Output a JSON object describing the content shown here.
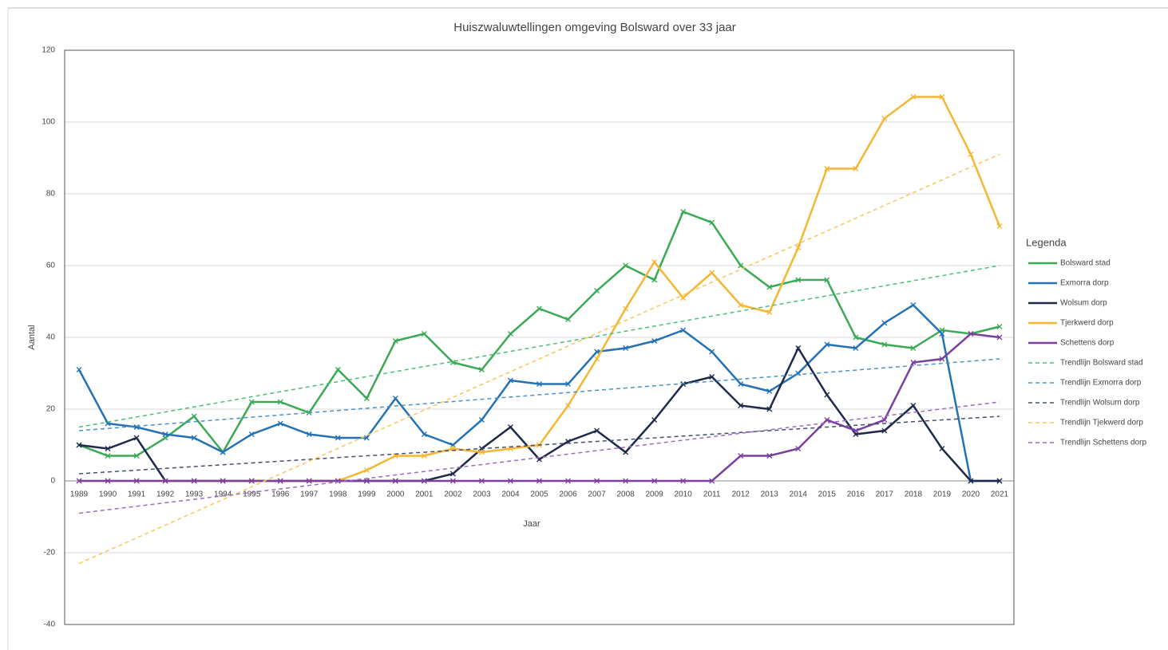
{
  "chart_data": {
    "type": "line",
    "title": "Huiszwaluwtellingen omgeving Bolsward over 33 jaar",
    "xlabel": "Jaar",
    "ylabel": "Aantal",
    "legend_title": "Legenda",
    "x": [
      1989,
      1990,
      1991,
      1992,
      1993,
      1994,
      1995,
      1996,
      1997,
      1998,
      1999,
      2000,
      2001,
      2002,
      2003,
      2004,
      2005,
      2006,
      2007,
      2008,
      2009,
      2010,
      2011,
      2012,
      2013,
      2014,
      2015,
      2016,
      2017,
      2018,
      2019,
      2020,
      2021
    ],
    "xlim": [
      1988.5,
      2021.5
    ],
    "ylim": [
      -40,
      120
    ],
    "yticks": [
      -40,
      -20,
      0,
      20,
      40,
      60,
      80,
      100,
      120
    ],
    "grid": true,
    "legend": "right",
    "series": [
      {
        "name": "Bolsward stad",
        "color": "#3aaa55",
        "values": [
          10,
          7,
          7,
          12,
          18,
          8,
          22,
          22,
          19,
          31,
          23,
          39,
          41,
          33,
          31,
          41,
          48,
          45,
          53,
          60,
          56,
          75,
          72,
          60,
          54,
          56,
          56,
          40,
          38,
          37,
          42,
          41,
          43
        ]
      },
      {
        "name": "Exmorra dorp",
        "color": "#2272b5",
        "values": [
          31,
          16,
          15,
          13,
          12,
          8,
          13,
          16,
          13,
          12,
          12,
          23,
          13,
          10,
          17,
          28,
          27,
          27,
          36,
          37,
          39,
          42,
          36,
          27,
          25,
          30,
          38,
          37,
          44,
          49,
          41,
          0,
          0
        ]
      },
      {
        "name": "Wolsum dorp",
        "color": "#1f2a4a",
        "values": [
          10,
          9,
          12,
          0,
          0,
          0,
          0,
          0,
          0,
          0,
          0,
          0,
          0,
          2,
          9,
          15,
          6,
          11,
          14,
          8,
          17,
          27,
          29,
          21,
          20,
          37,
          24,
          13,
          14,
          21,
          9,
          0,
          0
        ]
      },
      {
        "name": "Tjerkwerd dorp",
        "color": "#f5b731",
        "values": [
          0,
          0,
          0,
          0,
          0,
          0,
          0,
          0,
          0,
          0,
          3,
          7,
          7,
          9,
          8,
          9,
          10,
          21,
          34,
          48,
          61,
          51,
          58,
          49,
          47,
          65,
          87,
          87,
          101,
          107,
          107,
          91,
          71
        ]
      },
      {
        "name": "Schettens dorp",
        "color": "#7a3fa0",
        "values": [
          0,
          0,
          0,
          0,
          0,
          0,
          0,
          0,
          0,
          0,
          0,
          0,
          0,
          0,
          0,
          0,
          0,
          0,
          0,
          0,
          0,
          0,
          0,
          7,
          7,
          9,
          17,
          14,
          17,
          33,
          34,
          41,
          40
        ]
      },
      {
        "name": "Trendlijn Bolsward stad",
        "color": "#4cbf77",
        "dashed": true,
        "x": [
          1989,
          2021
        ],
        "values": [
          15,
          60
        ]
      },
      {
        "name": "Trendlijn Exmorra dorp",
        "color": "#4a93c8",
        "dashed": true,
        "x": [
          1989,
          2021
        ],
        "values": [
          14,
          34
        ]
      },
      {
        "name": "Trendlijn Wolsum dorp",
        "color": "#44506e",
        "dashed": true,
        "x": [
          1989,
          2021
        ],
        "values": [
          2,
          18
        ]
      },
      {
        "name": "Trendlijn Tjekwerd dorp",
        "color": "#f7c85a",
        "dashed": true,
        "x": [
          1989,
          2021
        ],
        "values": [
          -23,
          91
        ]
      },
      {
        "name": "Trendlijn Schettens dorp",
        "color": "#9b6cc0",
        "dashed": true,
        "x": [
          1989,
          2021
        ],
        "values": [
          -9,
          22
        ]
      }
    ]
  }
}
